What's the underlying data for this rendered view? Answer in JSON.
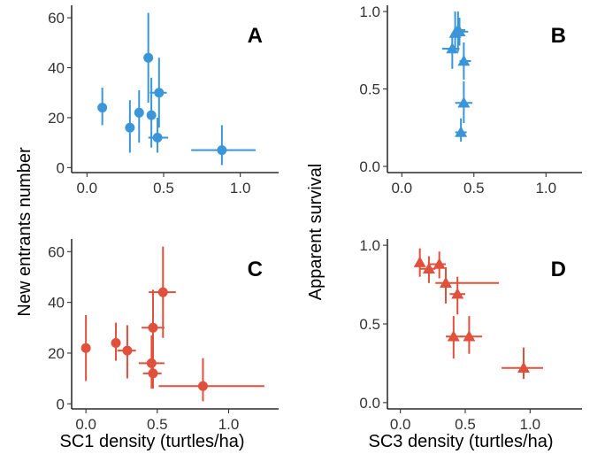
{
  "figure": {
    "shared_ylabels": {
      "top_row_left": "New entrants number",
      "right_col": "Apparent survival"
    },
    "shared_xlabels": {
      "left_col": "SC1 density (turtles/ha)",
      "right_col": "SC3 density (turtles/ha)"
    }
  },
  "colors": {
    "blue": "#3a96d8",
    "red": "#e0503c",
    "axis": "#000000"
  },
  "chart_data": [
    {
      "panel": "A",
      "type": "scatter",
      "marker": "circle",
      "color": "#3a96d8",
      "xlim": [
        -0.1,
        1.25
      ],
      "ylim": [
        -2,
        65
      ],
      "xticks": [
        0.0,
        0.5,
        1.0
      ],
      "xtick_labels": [
        "0.0",
        "0.5",
        "1.0"
      ],
      "yticks": [
        0,
        20,
        40,
        60
      ],
      "ytick_labels": [
        "0",
        "20",
        "40",
        "60"
      ],
      "points": [
        {
          "x": 0.1,
          "y": 24,
          "xerr": [
            0.1,
            0.1
          ],
          "yerr": [
            17,
            32
          ]
        },
        {
          "x": 0.28,
          "y": 16,
          "xerr": [
            0.28,
            0.28
          ],
          "yerr": [
            6,
            27
          ]
        },
        {
          "x": 0.34,
          "y": 22,
          "xerr": [
            0.34,
            0.34
          ],
          "yerr": [
            10,
            31
          ]
        },
        {
          "x": 0.4,
          "y": 44,
          "xerr": [
            0.4,
            0.4
          ],
          "yerr": [
            26,
            62
          ]
        },
        {
          "x": 0.42,
          "y": 21,
          "xerr": [
            0.42,
            0.42
          ],
          "yerr": [
            8,
            36
          ]
        },
        {
          "x": 0.47,
          "y": 30,
          "xerr": [
            0.41,
            0.52
          ],
          "yerr": [
            16,
            44
          ]
        },
        {
          "x": 0.46,
          "y": 12,
          "xerr": [
            0.4,
            0.53
          ],
          "yerr": [
            6,
            20
          ]
        },
        {
          "x": 0.88,
          "y": 7,
          "xerr": [
            0.68,
            1.1
          ],
          "yerr": [
            1,
            17
          ]
        }
      ],
      "xlabel": "",
      "ylabel": ""
    },
    {
      "panel": "B",
      "type": "scatter",
      "marker": "triangle",
      "color": "#3a96d8",
      "xlim": [
        -0.1,
        1.25
      ],
      "ylim": [
        -0.04,
        1.04
      ],
      "xticks": [
        0.0,
        0.5,
        1.0
      ],
      "xtick_labels": [
        "0.0",
        "0.5",
        "1.0"
      ],
      "yticks": [
        0.0,
        0.5,
        1.0
      ],
      "ytick_labels": [
        "0.0",
        "0.5",
        "1.0"
      ],
      "points": [
        {
          "x": 0.35,
          "y": 0.76,
          "xerr": [
            0.28,
            0.4
          ],
          "yerr": [
            0.63,
            0.86
          ]
        },
        {
          "x": 0.37,
          "y": 0.86,
          "xerr": [
            0.35,
            0.4
          ],
          "yerr": [
            0.73,
            1.0
          ]
        },
        {
          "x": 0.39,
          "y": 0.88,
          "xerr": [
            0.36,
            0.44
          ],
          "yerr": [
            0.74,
            1.0
          ]
        },
        {
          "x": 0.4,
          "y": 0.87,
          "xerr": [
            0.37,
            0.46
          ],
          "yerr": [
            0.78,
            0.96
          ]
        },
        {
          "x": 0.43,
          "y": 0.68,
          "xerr": [
            0.4,
            0.48
          ],
          "yerr": [
            0.56,
            0.8
          ]
        },
        {
          "x": 0.43,
          "y": 0.41,
          "xerr": [
            0.37,
            0.49
          ],
          "yerr": [
            0.28,
            0.55
          ]
        },
        {
          "x": 0.41,
          "y": 0.22,
          "xerr": [
            0.37,
            0.45
          ],
          "yerr": [
            0.16,
            0.31
          ]
        }
      ],
      "xlabel": "",
      "ylabel": ""
    },
    {
      "panel": "C",
      "type": "scatter",
      "marker": "circle",
      "color": "#e0503c",
      "xlim": [
        -0.1,
        1.35
      ],
      "ylim": [
        -2,
        65
      ],
      "xticks": [
        0.0,
        0.5,
        1.0
      ],
      "xtick_labels": [
        "0.0",
        "0.5",
        "1.0"
      ],
      "yticks": [
        0,
        20,
        40,
        60
      ],
      "ytick_labels": [
        "0",
        "20",
        "40",
        "60"
      ],
      "points": [
        {
          "x": 0.0,
          "y": 22,
          "xerr": [
            0.0,
            0.0
          ],
          "yerr": [
            9,
            35
          ]
        },
        {
          "x": 0.21,
          "y": 24,
          "xerr": [
            0.21,
            0.21
          ],
          "yerr": [
            17,
            32
          ]
        },
        {
          "x": 0.29,
          "y": 21,
          "xerr": [
            0.22,
            0.35
          ],
          "yerr": [
            10,
            31
          ]
        },
        {
          "x": 0.47,
          "y": 30,
          "xerr": [
            0.39,
            0.55
          ],
          "yerr": [
            16,
            45
          ]
        },
        {
          "x": 0.46,
          "y": 16,
          "xerr": [
            0.37,
            0.55
          ],
          "yerr": [
            6,
            27
          ]
        },
        {
          "x": 0.47,
          "y": 12,
          "xerr": [
            0.4,
            0.53
          ],
          "yerr": [
            6,
            21
          ]
        },
        {
          "x": 0.54,
          "y": 44,
          "xerr": [
            0.44,
            0.63
          ],
          "yerr": [
            26,
            62
          ]
        },
        {
          "x": 0.82,
          "y": 7,
          "xerr": [
            0.51,
            1.25
          ],
          "yerr": [
            1,
            18
          ]
        }
      ],
      "xlabel": "SC1 density (turtles/ha)",
      "ylabel": ""
    },
    {
      "panel": "D",
      "type": "scatter",
      "marker": "triangle",
      "color": "#e0503c",
      "xlim": [
        -0.1,
        1.4
      ],
      "ylim": [
        -0.04,
        1.04
      ],
      "xticks": [
        0.0,
        0.5,
        1.0
      ],
      "xtick_labels": [
        "0.0",
        "0.5",
        "1.0"
      ],
      "yticks": [
        0.0,
        0.5,
        1.0
      ],
      "ytick_labels": [
        "0.0",
        "0.5",
        "1.0"
      ],
      "points": [
        {
          "x": 0.15,
          "y": 0.89,
          "xerr": [
            0.15,
            0.15
          ],
          "yerr": [
            0.8,
            0.98
          ]
        },
        {
          "x": 0.22,
          "y": 0.85,
          "xerr": [
            0.15,
            0.27
          ],
          "yerr": [
            0.76,
            0.93
          ]
        },
        {
          "x": 0.3,
          "y": 0.88,
          "xerr": [
            0.22,
            0.35
          ],
          "yerr": [
            0.79,
            0.96
          ]
        },
        {
          "x": 0.35,
          "y": 0.76,
          "xerr": [
            0.27,
            0.76
          ],
          "yerr": [
            0.63,
            0.86
          ]
        },
        {
          "x": 0.44,
          "y": 0.69,
          "xerr": [
            0.38,
            0.5
          ],
          "yerr": [
            0.56,
            0.8
          ]
        },
        {
          "x": 0.41,
          "y": 0.42,
          "xerr": [
            0.35,
            0.48
          ],
          "yerr": [
            0.28,
            0.55
          ]
        },
        {
          "x": 0.53,
          "y": 0.42,
          "xerr": [
            0.46,
            0.63
          ],
          "yerr": [
            0.31,
            0.55
          ]
        },
        {
          "x": 0.95,
          "y": 0.22,
          "xerr": [
            0.78,
            1.1
          ],
          "yerr": [
            0.15,
            0.35
          ]
        }
      ],
      "xlabel": "SC3 density (turtles/ha)",
      "ylabel": ""
    }
  ]
}
